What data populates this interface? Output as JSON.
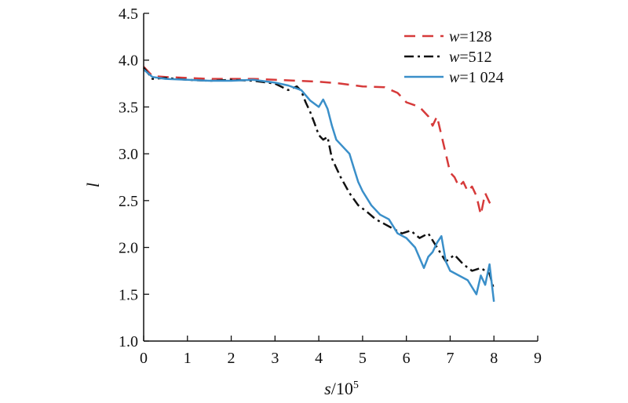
{
  "chart_data": {
    "type": "line",
    "xlabel": {
      "var": "s",
      "rest": "/10",
      "sup": "5"
    },
    "ylabel": "l",
    "xlim": [
      0,
      9
    ],
    "ylim": [
      1.0,
      4.5
    ],
    "xticks": [
      "0",
      "1",
      "2",
      "3",
      "4",
      "5",
      "6",
      "7",
      "8",
      "9"
    ],
    "yticks": [
      "1.0",
      "1.5",
      "2.0",
      "2.5",
      "3.0",
      "3.5",
      "4.0",
      "4.5"
    ],
    "grid": false,
    "legend": "top-right",
    "series": [
      {
        "name": "w=128",
        "legend_var": "w",
        "legend_rest": "=128",
        "color": "#d63a3a",
        "style": "dashed",
        "x": [
          0,
          0.2,
          0.5,
          1,
          1.5,
          2,
          2.5,
          3,
          3.5,
          4,
          4.5,
          5,
          5.5,
          5.8,
          6,
          6.3,
          6.5,
          6.6,
          6.7,
          6.8,
          6.9,
          7,
          7.1,
          7.2,
          7.3,
          7.4,
          7.5,
          7.6,
          7.7,
          7.8,
          7.9,
          8
        ],
        "y": [
          3.93,
          3.83,
          3.82,
          3.81,
          3.8,
          3.8,
          3.8,
          3.79,
          3.78,
          3.77,
          3.75,
          3.72,
          3.71,
          3.65,
          3.55,
          3.5,
          3.4,
          3.3,
          3.4,
          3.2,
          3.0,
          2.8,
          2.75,
          2.65,
          2.7,
          2.6,
          2.65,
          2.55,
          2.35,
          2.58,
          2.48,
          2.43
        ]
      },
      {
        "name": "w=512",
        "legend_var": "w",
        "legend_rest": "=512",
        "color": "#111111",
        "style": "dashdot",
        "x": [
          0,
          0.2,
          0.5,
          1,
          1.5,
          2,
          2.5,
          3,
          3.3,
          3.5,
          3.6,
          3.7,
          3.8,
          3.9,
          4.0,
          4.1,
          4.2,
          4.3,
          4.5,
          4.7,
          4.9,
          5.1,
          5.3,
          5.5,
          5.7,
          5.9,
          6.1,
          6.3,
          6.5,
          6.7,
          6.9,
          7.1,
          7.3,
          7.5,
          7.7,
          7.9,
          8
        ],
        "y": [
          3.92,
          3.8,
          3.81,
          3.79,
          3.78,
          3.79,
          3.78,
          3.75,
          3.68,
          3.72,
          3.67,
          3.55,
          3.45,
          3.33,
          3.2,
          3.15,
          3.18,
          2.95,
          2.75,
          2.58,
          2.45,
          2.38,
          2.3,
          2.25,
          2.2,
          2.15,
          2.18,
          2.1,
          2.15,
          2.0,
          1.85,
          1.92,
          1.82,
          1.75,
          1.78,
          1.72,
          1.55
        ]
      },
      {
        "name": "w=1 024",
        "legend_var": "w",
        "legend_rest": "=1 024",
        "color": "#3a8fc9",
        "style": "solid",
        "x": [
          0,
          0.2,
          0.5,
          1,
          1.5,
          2,
          2.5,
          3,
          3.3,
          3.6,
          3.8,
          4.0,
          4.1,
          4.2,
          4.3,
          4.4,
          4.5,
          4.6,
          4.7,
          4.8,
          4.9,
          5.0,
          5.2,
          5.4,
          5.6,
          5.8,
          6.0,
          6.2,
          6.4,
          6.5,
          6.6,
          6.7,
          6.8,
          6.9,
          7.0,
          7.2,
          7.4,
          7.6,
          7.7,
          7.8,
          7.9,
          8.0
        ],
        "y": [
          3.9,
          3.82,
          3.8,
          3.79,
          3.78,
          3.78,
          3.79,
          3.76,
          3.73,
          3.68,
          3.57,
          3.5,
          3.58,
          3.48,
          3.3,
          3.15,
          3.1,
          3.05,
          3.0,
          2.85,
          2.7,
          2.6,
          2.45,
          2.35,
          2.3,
          2.15,
          2.1,
          2.0,
          1.78,
          1.9,
          1.95,
          2.05,
          2.12,
          1.85,
          1.75,
          1.7,
          1.65,
          1.5,
          1.7,
          1.6,
          1.82,
          1.42
        ]
      }
    ]
  }
}
